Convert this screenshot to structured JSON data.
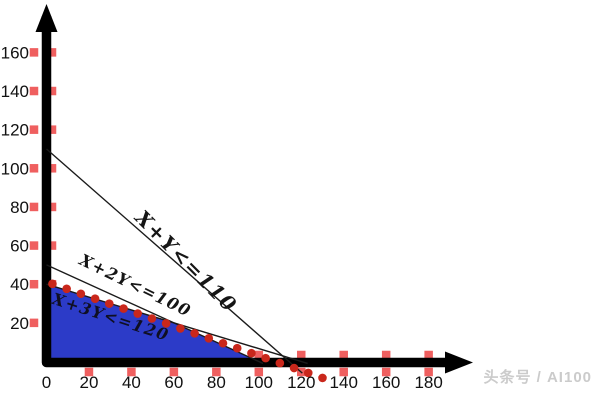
{
  "page": {
    "background": "#ffffff"
  },
  "watermark": {
    "text": "头条号 / AI100",
    "color": "#cbcbcb"
  },
  "chart_data": {
    "type": "line",
    "title": "",
    "xlabel": "",
    "ylabel": "",
    "xlim": [
      0,
      200
    ],
    "ylim": [
      0,
      185
    ],
    "grid": false,
    "x_ticks": [
      0,
      20,
      40,
      60,
      80,
      100,
      120,
      140,
      160,
      180
    ],
    "y_ticks": [
      20,
      40,
      60,
      80,
      100,
      120,
      140,
      160
    ],
    "axis_color": "#000000",
    "constraint_line_color": "#1a1a1a",
    "tick_marker": {
      "shape": "square",
      "color": "#ef5f5f"
    },
    "constraints": [
      {
        "label": "X+Y<=110",
        "line_from": [
          0,
          110
        ],
        "line_to": [
          120.5,
          -6
        ]
      },
      {
        "label": "X+2Y<=100",
        "line_from": [
          0,
          50
        ],
        "line_to": [
          102,
          -1
        ]
      },
      {
        "label": "X+3Y<=120",
        "line_from": [
          0,
          40
        ],
        "line_to": [
          123,
          -1
        ]
      }
    ],
    "feasible_region": {
      "vertices": [
        [
          0,
          0
        ],
        [
          0,
          40
        ],
        [
          60,
          20
        ],
        [
          100,
          0
        ]
      ],
      "color": "#2c3bc8"
    },
    "dotted_line": {
      "from": [
        2.8,
        40.2
      ],
      "to": [
        130,
        -8.5
      ],
      "count": 20,
      "color": "#c9271b"
    }
  }
}
